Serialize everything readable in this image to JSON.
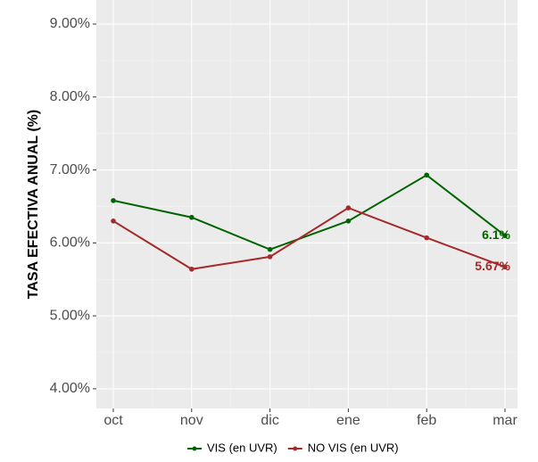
{
  "chart_data": {
    "type": "line",
    "y_label": "TASA EFECTIVA ANUAL (%)",
    "categories": [
      "oct",
      "nov",
      "dic",
      "ene",
      "feb",
      "mar"
    ],
    "series": [
      {
        "name": "VIS (en UVR)",
        "color": "#006400",
        "values": [
          6.58,
          6.35,
          5.91,
          6.3,
          6.93,
          6.1
        ],
        "value_labels": [
          null,
          null,
          null,
          null,
          null,
          "6.1%"
        ]
      },
      {
        "name": "NO VIS (en UVR)",
        "color": "#a52a2a",
        "values": [
          6.3,
          5.64,
          5.81,
          6.48,
          6.07,
          5.67
        ],
        "value_labels": [
          null,
          null,
          null,
          null,
          null,
          "5.67%"
        ]
      }
    ],
    "ylim": [
      3.73,
      9.33
    ],
    "yticks": [
      {
        "value": 4,
        "label": "4.00%"
      },
      {
        "value": 5,
        "label": "5.00%"
      },
      {
        "value": 6,
        "label": "6.00%"
      },
      {
        "value": 7,
        "label": "7.00%"
      },
      {
        "value": 8,
        "label": "8.00%"
      },
      {
        "value": 9,
        "label": "9.00%"
      }
    ],
    "grid": true,
    "legend": "bottom"
  }
}
